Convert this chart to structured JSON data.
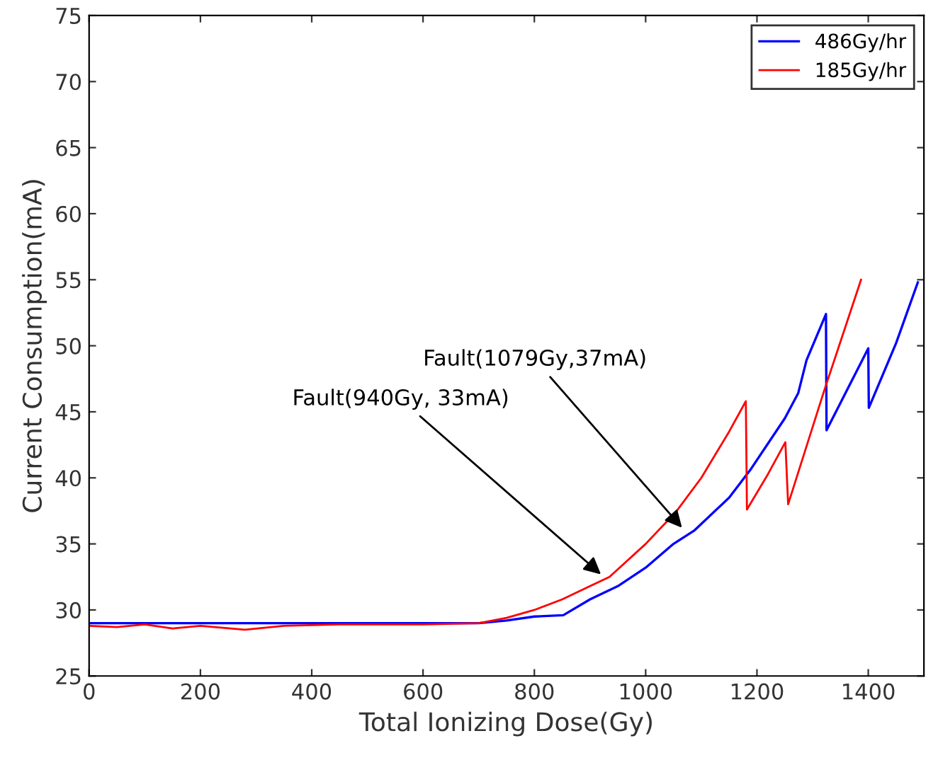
{
  "chart_data": {
    "type": "line",
    "xlabel": "Total Ionizing Dose(Gy)",
    "ylabel": "Current Consumption(mA)",
    "xlim": [
      0,
      1500
    ],
    "xticks": [
      0,
      200,
      400,
      600,
      800,
      1000,
      1200,
      1400
    ],
    "ylim": [
      25,
      75
    ],
    "yticks": [
      25,
      30,
      35,
      40,
      45,
      50,
      55,
      60,
      65,
      70,
      75
    ],
    "grid": false,
    "legend": "top right",
    "marker": "none",
    "line_style": "solid",
    "series": [
      {
        "name": "486Gy/hr",
        "color": "#0000ff",
        "x": [
          0,
          200,
          400,
          600,
          700,
          750,
          800,
          852,
          900,
          950,
          1000,
          1050,
          1087,
          1150,
          1188,
          1250,
          1274,
          1289,
          1324,
          1325,
          1360,
          1400,
          1401,
          1450,
          1489
        ],
        "values": [
          29.0,
          29.0,
          29.0,
          29.0,
          29.0,
          29.2,
          29.5,
          29.6,
          30.8,
          31.8,
          33.2,
          35.0,
          36.0,
          38.5,
          40.6,
          44.5,
          46.4,
          48.9,
          52.4,
          43.6,
          46.5,
          49.8,
          45.3,
          50.2,
          54.8
        ]
      },
      {
        "name": "185Gy/hr",
        "color": "#ff0000",
        "x": [
          0,
          50,
          100,
          150,
          200,
          280,
          350,
          450,
          500,
          600,
          700,
          750,
          800,
          850,
          900,
          935,
          1000,
          1054,
          1100,
          1150,
          1180,
          1182,
          1220,
          1251,
          1256,
          1320,
          1387
        ],
        "values": [
          28.8,
          28.7,
          28.9,
          28.6,
          28.8,
          28.5,
          28.8,
          28.9,
          28.9,
          28.9,
          29.0,
          29.4,
          30.0,
          30.8,
          31.8,
          32.5,
          35.0,
          37.4,
          40.0,
          43.5,
          45.8,
          37.6,
          40.3,
          42.7,
          38.0,
          46.5,
          55.0
        ]
      }
    ],
    "annotations": [
      {
        "text": "Fault(940Gy, 33mA)",
        "x": 925,
        "y": 32.5
      },
      {
        "text": "Fault(1079Gy,37mA)",
        "x": 1070,
        "y": 36.0
      }
    ]
  }
}
